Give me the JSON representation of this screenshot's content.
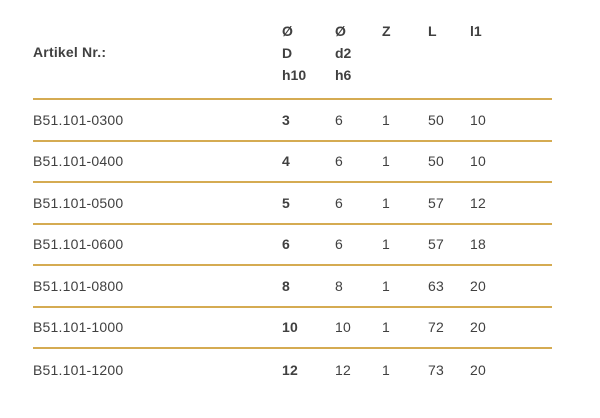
{
  "colors": {
    "rule_gold": "#D5AB52",
    "text": "#404040",
    "background": "#FFFFFF"
  },
  "table": {
    "header": {
      "artikel_label": "Artikel Nr.:",
      "columns": [
        {
          "lines": [
            "Ø",
            "D",
            "h10"
          ]
        },
        {
          "lines": [
            "Ø",
            "d2",
            "h6"
          ]
        },
        {
          "lines": [
            "Z"
          ]
        },
        {
          "lines": [
            "L"
          ]
        },
        {
          "lines": [
            "l1"
          ]
        }
      ]
    },
    "rows": [
      {
        "artikel": "B51.101-0300",
        "d": "3",
        "d2": "6",
        "z": "1",
        "l": "50",
        "l1": "10"
      },
      {
        "artikel": "B51.101-0400",
        "d": "4",
        "d2": "6",
        "z": "1",
        "l": "50",
        "l1": "10"
      },
      {
        "artikel": "B51.101-0500",
        "d": "5",
        "d2": "6",
        "z": "1",
        "l": "57",
        "l1": "12"
      },
      {
        "artikel": "B51.101-0600",
        "d": "6",
        "d2": "6",
        "z": "1",
        "l": "57",
        "l1": "18"
      },
      {
        "artikel": "B51.101-0800",
        "d": "8",
        "d2": "8",
        "z": "1",
        "l": "63",
        "l1": "20"
      },
      {
        "artikel": "B51.101-1000",
        "d": "10",
        "d2": "10",
        "z": "1",
        "l": "72",
        "l1": "20"
      },
      {
        "artikel": "B51.101-1200",
        "d": "12",
        "d2": "12",
        "z": "1",
        "l": "73",
        "l1": "20"
      }
    ]
  }
}
